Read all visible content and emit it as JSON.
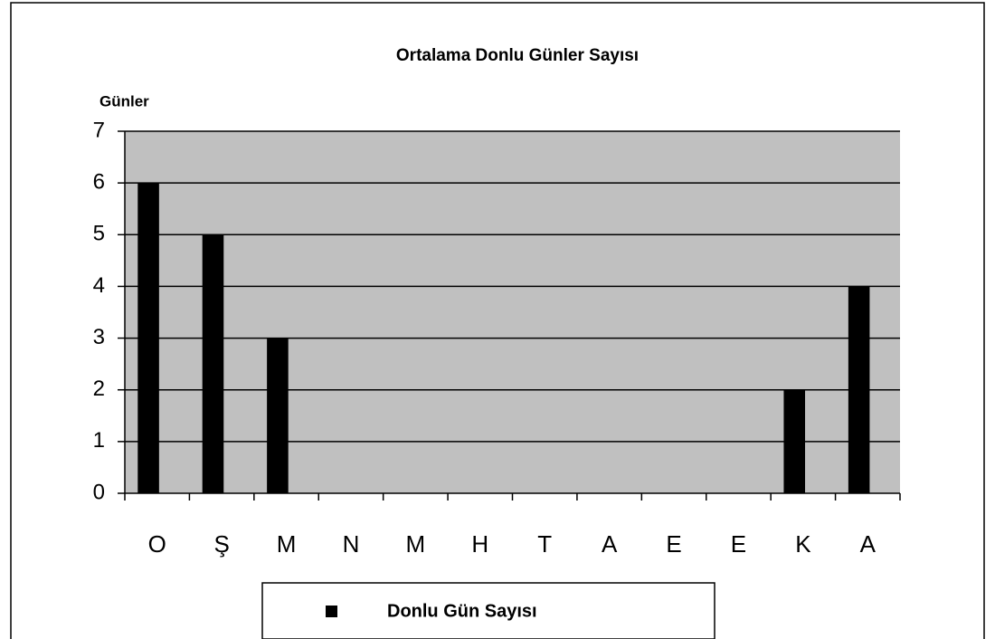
{
  "chart_data": {
    "type": "bar",
    "title": "Ortalama Donlu Günler Sayısı",
    "y_label": "Günler",
    "categories": [
      "O",
      "Ş",
      "M",
      "N",
      "M",
      "H",
      "T",
      "A",
      "E",
      "E",
      "K",
      "A"
    ],
    "series": [
      {
        "name": "Donlu Gün Sayısı",
        "color": "#000000",
        "values": [
          6,
          5,
          3,
          0,
          0,
          0,
          0,
          0,
          0,
          0,
          2,
          4
        ]
      }
    ],
    "ylim": [
      0,
      7
    ],
    "yticks": [
      0,
      1,
      2,
      3,
      4,
      5,
      6,
      7
    ],
    "grid": true,
    "legend": "bottom"
  }
}
